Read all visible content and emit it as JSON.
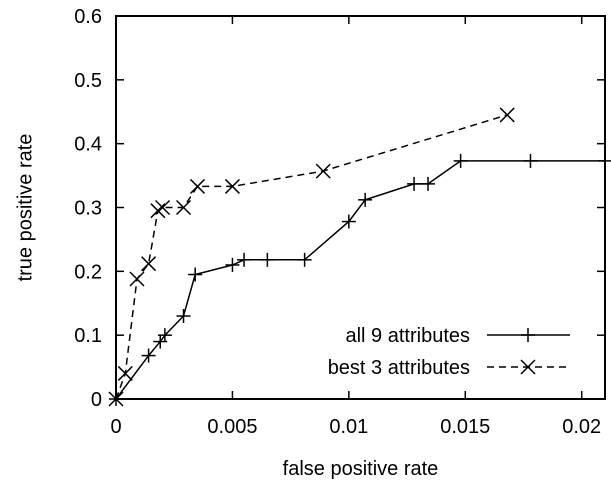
{
  "chart_data": {
    "type": "line",
    "xlabel": "false positive rate",
    "ylabel": "true positive rate",
    "xlim": [
      0,
      0.021
    ],
    "ylim": [
      0,
      0.6
    ],
    "x_ticks": [
      0,
      0.005,
      0.01,
      0.015,
      0.02
    ],
    "x_tick_labels": [
      "0",
      "0.005",
      "0.01",
      "0.015",
      "0.02"
    ],
    "y_ticks": [
      0,
      0.1,
      0.2,
      0.3,
      0.4,
      0.5,
      0.6
    ],
    "y_tick_labels": [
      "0",
      "0.1",
      "0.2",
      "0.3",
      "0.4",
      "0.5",
      "0.6"
    ],
    "grid": false,
    "legend_position": "bottom-right",
    "series": [
      {
        "name": "all 9 attributes",
        "line_style": "solid",
        "marker": "plus",
        "color": "#000000",
        "x": [
          0,
          0.0014,
          0.0019,
          0.0021,
          0.0029,
          0.0034,
          0.005,
          0.0055,
          0.0065,
          0.0081,
          0.01,
          0.0107,
          0.0128,
          0.0134,
          0.0148,
          0.0178,
          0.021
        ],
        "y": [
          0,
          0.068,
          0.09,
          0.1,
          0.13,
          0.195,
          0.21,
          0.218,
          0.218,
          0.218,
          0.278,
          0.312,
          0.337,
          0.337,
          0.373,
          0.373,
          0.373
        ]
      },
      {
        "name": "best 3 attributes",
        "line_style": "dashed",
        "marker": "cross",
        "color": "#000000",
        "x": [
          0,
          0.0004,
          0.0009,
          0.0014,
          0.0018,
          0.002,
          0.0029,
          0.0035,
          0.005,
          0.0089,
          0.0168
        ],
        "y": [
          0,
          0.04,
          0.188,
          0.212,
          0.295,
          0.3,
          0.3,
          0.333,
          0.333,
          0.357,
          0.445
        ]
      }
    ]
  }
}
